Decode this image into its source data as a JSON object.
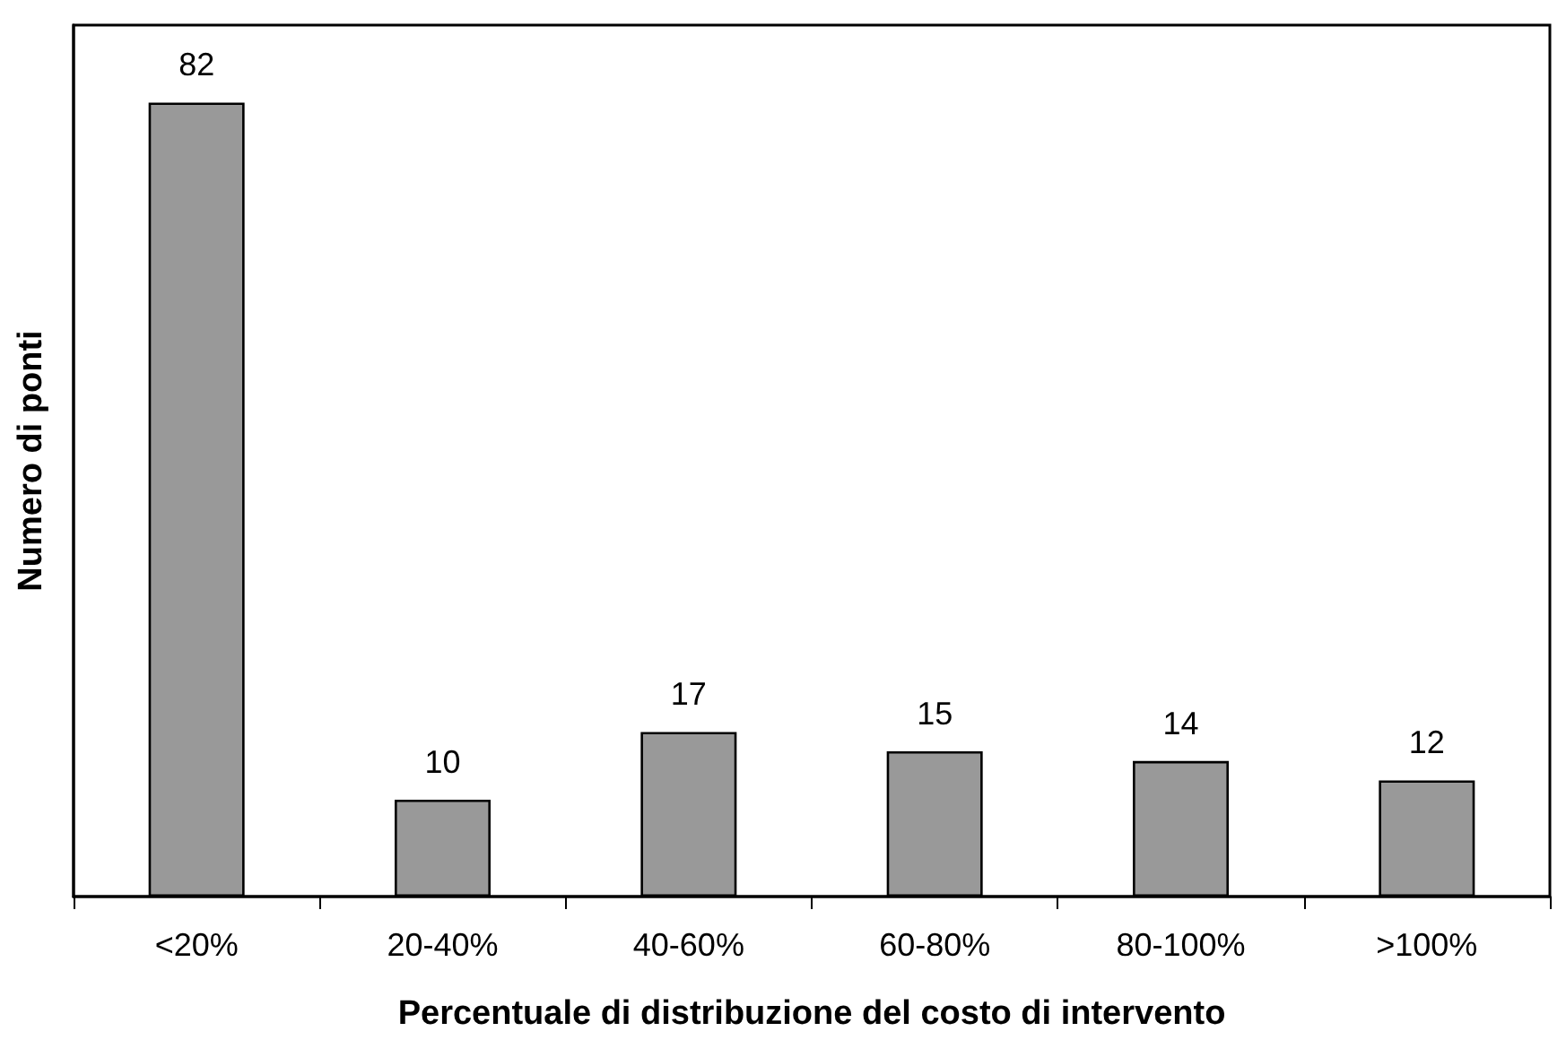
{
  "chart_data": {
    "type": "bar",
    "xlabel": "Percentuale di distribuzione del costo di intervento",
    "ylabel": "Numero di ponti",
    "categories": [
      "<20%",
      "20-40%",
      "40-60%",
      "60-80%",
      "80-100%",
      ">100%"
    ],
    "values": [
      82,
      10,
      17,
      15,
      14,
      12
    ],
    "color": "#999999",
    "ylim": [
      0,
      90
    ],
    "tick_labels": "x",
    "data_labels": true
  }
}
